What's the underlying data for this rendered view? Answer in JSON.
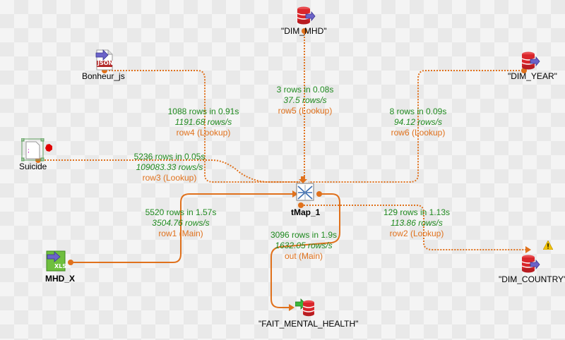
{
  "nodes": {
    "dim_mhd": "\"DIM_MHD\"",
    "bonheur": "Bonheur_js",
    "dim_year": "\"DIM_YEAR\"",
    "suicide": "Suicide",
    "tmap": "tMap_1",
    "mhd_x": "MHD_X",
    "dim_country": "\"DIM_COUNTRY\"",
    "fait": "\"FAIT_MENTAL_HEALTH\""
  },
  "links": {
    "row5": {
      "rows": "3 rows in 0.08s",
      "rate": "37.5 rows/s",
      "name": "row5 (Lookup)"
    },
    "row4": {
      "rows": "1088 rows in 0.91s",
      "rate": "1191.68 rows/s",
      "name": "row4 (Lookup)"
    },
    "row6": {
      "rows": "8 rows in 0.09s",
      "rate": "94.12 rows/s",
      "name": "row6 (Lookup)"
    },
    "row3": {
      "rows": "5236 rows in 0.05s",
      "rate": "109083.33 rows/s",
      "name": "row3 (Lookup)"
    },
    "row1": {
      "rows": "5520 rows in 1.57s",
      "rate": "3504.76 rows/s",
      "name": "row1 (Main)"
    },
    "row2": {
      "rows": "129 rows in 1.13s",
      "rate": "113.86 rows/s",
      "name": "row2 (Lookup)"
    },
    "out": {
      "rows": "3096 rows in 1.9s",
      "rate": "1632.05 rows/s",
      "name": "out (Main)"
    }
  },
  "icon_badges": {
    "json": "JSON",
    "xls": "XLS"
  },
  "colors": {
    "lookup_line": "#e0711c",
    "main_line": "#e0711c",
    "stat_green": "#1f8a1f",
    "db_red": "#d9262b",
    "connector": "#7a6fcf"
  }
}
